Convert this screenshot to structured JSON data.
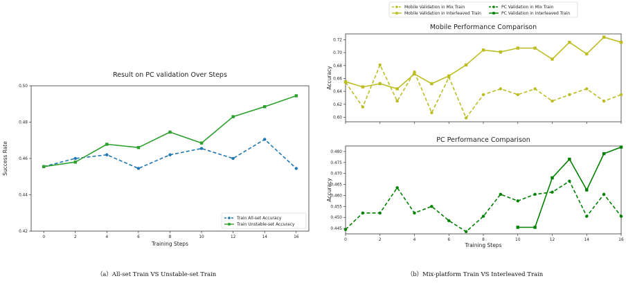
{
  "captions": {
    "a": "（a）All-set Train VS Unstable-set Train",
    "b": "（b）Mix-platform Train VS Interleaved Train"
  },
  "chart_data": [
    {
      "id": "left",
      "type": "line",
      "title": "Result on PC validation Over Steps",
      "xlabel": "Training Steps",
      "ylabel": "Success Rate",
      "xlim": [
        -0.8,
        16.8
      ],
      "ylim": [
        0.42,
        0.5
      ],
      "xticks": [
        0,
        2,
        4,
        6,
        8,
        10,
        12,
        14,
        16
      ],
      "yticks": [
        0.42,
        0.44,
        0.46,
        0.48,
        0.5
      ],
      "ytick_labels": [
        "0.42",
        "0.44",
        "0.46",
        "0.48",
        "0.50"
      ],
      "legend_position": "lower-right",
      "series": [
        {
          "name": "Train All-set Accuracy",
          "color": "#1f77b4",
          "dash": true,
          "marker": "circle",
          "x": [
            0,
            2,
            4,
            6,
            8,
            10,
            12,
            14,
            16
          ],
          "values": [
            0.4555,
            0.46,
            0.462,
            0.4545,
            0.462,
            0.4655,
            0.46,
            0.4705,
            0.4545
          ]
        },
        {
          "name": "Train Unstable-set Accuracy",
          "color": "#2ca02c",
          "dash": false,
          "marker": "square",
          "x": [
            0,
            2,
            4,
            6,
            8,
            10,
            12,
            14,
            16
          ],
          "values": [
            0.4555,
            0.458,
            0.4678,
            0.466,
            0.4745,
            0.4685,
            0.483,
            0.4885,
            0.4945
          ]
        }
      ]
    },
    {
      "id": "top-right",
      "type": "line",
      "title": "Mobile Performance Comparison",
      "xlabel": "",
      "ylabel": "Accuracy",
      "xlim": [
        0,
        16
      ],
      "ylim": [
        0.593,
        0.729
      ],
      "xticks": [
        0,
        2,
        4,
        6,
        8,
        10,
        12,
        14,
        16
      ],
      "yticks": [
        0.6,
        0.62,
        0.64,
        0.66,
        0.68,
        0.7,
        0.72
      ],
      "ytick_labels": [
        "0.60",
        "0.62",
        "0.64",
        "0.66",
        "0.68",
        "0.70",
        "0.72"
      ],
      "series": [
        {
          "name": "Mobile Validation in Mix Train",
          "color": "#bcbd22",
          "dash": true,
          "marker": "circle",
          "x": [
            0,
            1,
            2,
            3,
            4,
            5,
            6,
            7,
            8,
            9,
            10,
            11,
            12,
            13,
            14,
            15,
            16
          ],
          "values": [
            0.654,
            0.616,
            0.681,
            0.625,
            0.67,
            0.607,
            0.662,
            0.599,
            0.635,
            0.644,
            0.635,
            0.644,
            0.625,
            0.635,
            0.644,
            0.625,
            0.635
          ]
        },
        {
          "name": "Mobile Validation in Interleaved Train",
          "color": "#bcbd22",
          "dash": false,
          "marker": "square",
          "x": [
            0,
            1,
            2,
            3,
            4,
            5,
            6,
            7,
            8,
            9,
            10,
            11,
            12,
            13,
            14,
            15,
            16
          ],
          "values": [
            0.655,
            0.647,
            0.652,
            0.644,
            0.667,
            0.652,
            0.664,
            0.681,
            0.704,
            0.701,
            0.707,
            0.707,
            0.69,
            0.716,
            0.698,
            0.724,
            0.716
          ]
        }
      ]
    },
    {
      "id": "bottom-right",
      "type": "line",
      "title": "PC Performance Comparison",
      "xlabel": "Training Steps",
      "ylabel": "Accuracy",
      "xlim": [
        0,
        16
      ],
      "ylim": [
        0.4425,
        0.4825
      ],
      "xticks": [
        0,
        2,
        4,
        6,
        8,
        10,
        12,
        14,
        16
      ],
      "yticks": [
        0.445,
        0.45,
        0.455,
        0.46,
        0.465,
        0.47,
        0.475,
        0.48
      ],
      "ytick_labels": [
        "0.445",
        "0.450",
        "0.455",
        "0.460",
        "0.465",
        "0.470",
        "0.475",
        "0.480"
      ],
      "series": [
        {
          "name": "PC Validation in Mix Train",
          "color": "#008000",
          "dash": true,
          "marker": "circle",
          "x": [
            0,
            1,
            2,
            3,
            4,
            5,
            6,
            7,
            8,
            9,
            10,
            11,
            12,
            13,
            14,
            15,
            16
          ],
          "values": [
            0.4445,
            0.452,
            0.452,
            0.4635,
            0.452,
            0.455,
            0.4485,
            0.4435,
            0.4505,
            0.4605,
            0.4575,
            0.4605,
            0.4615,
            0.4665,
            0.4505,
            0.4605,
            0.4505
          ]
        },
        {
          "name": "PC Validation in Interleaved Train",
          "color": "#008000",
          "dash": false,
          "marker": "square",
          "x": [
            10,
            11,
            12,
            13,
            14,
            15,
            16
          ],
          "values": [
            0.4455,
            0.4455,
            0.468,
            0.4765,
            0.4625,
            0.479,
            0.482
          ]
        }
      ]
    }
  ]
}
